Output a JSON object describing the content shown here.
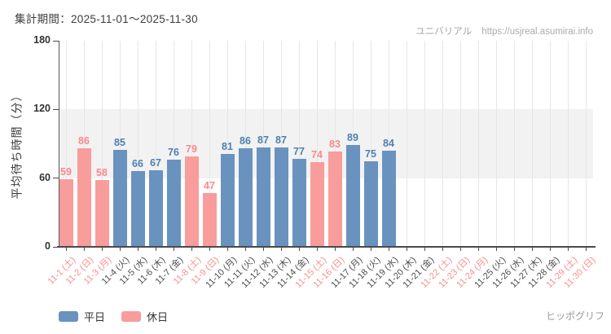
{
  "page": {
    "header": "集計期間：2025-11-01～2025-11-30",
    "watermark_brand": "ユニバリアル",
    "watermark_url": "https://usjreal.asumirai.info",
    "caption": "ヒッポグリフ"
  },
  "colors": {
    "weekday_bar": "#6a92bf",
    "holiday_bar": "#f99c9c",
    "weekday_value_text": "#4e81b1",
    "holiday_value_text": "#f9898f",
    "weekday_xlabel": "#4d4d4d",
    "holiday_xlabel": "#f98f8f",
    "axis": "#4d4d4d",
    "axis_text": "#333333",
    "band": "#f2f2f2",
    "gridline": "#e6e6e6"
  },
  "chart_data": {
    "type": "bar",
    "title": "集計期間：2025-11-01～2025-11-30",
    "ylabel": "平均待ち時間（分）",
    "xlabel": "",
    "unit": "分",
    "ylim": [
      0,
      180
    ],
    "yticks": [
      0,
      60,
      120,
      180
    ],
    "shaded_band_y": [
      60,
      120
    ],
    "grid": "vertical gridline per day",
    "legend_position": "bottom-left",
    "legend": [
      {
        "label": "平日",
        "color": "#6a92bf"
      },
      {
        "label": "休日",
        "color": "#f99c9c"
      }
    ],
    "days": [
      {
        "label": "11-1 (土)",
        "value": 59,
        "kind": "holiday"
      },
      {
        "label": "11-2 (日)",
        "value": 86,
        "kind": "holiday"
      },
      {
        "label": "11-3 (月)",
        "value": 58,
        "kind": "holiday"
      },
      {
        "label": "11-4 (火)",
        "value": 85,
        "kind": "weekday"
      },
      {
        "label": "11-5 (水)",
        "value": 66,
        "kind": "weekday"
      },
      {
        "label": "11-6 (木)",
        "value": 67,
        "kind": "weekday"
      },
      {
        "label": "11-7 (金)",
        "value": 76,
        "kind": "weekday"
      },
      {
        "label": "11-8 (土)",
        "value": 79,
        "kind": "holiday"
      },
      {
        "label": "11-9 (日)",
        "value": 47,
        "kind": "holiday"
      },
      {
        "label": "11-10 (月)",
        "value": 81,
        "kind": "weekday"
      },
      {
        "label": "11-11 (火)",
        "value": 86,
        "kind": "weekday"
      },
      {
        "label": "11-12 (水)",
        "value": 87,
        "kind": "weekday"
      },
      {
        "label": "11-13 (木)",
        "value": 87,
        "kind": "weekday"
      },
      {
        "label": "11-14 (金)",
        "value": 77,
        "kind": "weekday"
      },
      {
        "label": "11-15 (土)",
        "value": 74,
        "kind": "holiday"
      },
      {
        "label": "11-16 (日)",
        "value": 83,
        "kind": "holiday"
      },
      {
        "label": "11-17 (月)",
        "value": 89,
        "kind": "weekday"
      },
      {
        "label": "11-18 (火)",
        "value": 75,
        "kind": "weekday"
      },
      {
        "label": "11-19 (水)",
        "value": 84,
        "kind": "weekday"
      },
      {
        "label": "11-20 (木)",
        "value": null,
        "kind": "weekday"
      },
      {
        "label": "11-21 (金)",
        "value": null,
        "kind": "weekday"
      },
      {
        "label": "11-22 (土)",
        "value": null,
        "kind": "holiday"
      },
      {
        "label": "11-23 (日)",
        "value": null,
        "kind": "holiday"
      },
      {
        "label": "11-24 (月)",
        "value": null,
        "kind": "holiday"
      },
      {
        "label": "11-25 (火)",
        "value": null,
        "kind": "weekday"
      },
      {
        "label": "11-26 (水)",
        "value": null,
        "kind": "weekday"
      },
      {
        "label": "11-27 (木)",
        "value": null,
        "kind": "weekday"
      },
      {
        "label": "11-28 (金)",
        "value": null,
        "kind": "weekday"
      },
      {
        "label": "11-29 (土)",
        "value": null,
        "kind": "holiday"
      },
      {
        "label": "11-30 (日)",
        "value": null,
        "kind": "holiday"
      }
    ]
  }
}
